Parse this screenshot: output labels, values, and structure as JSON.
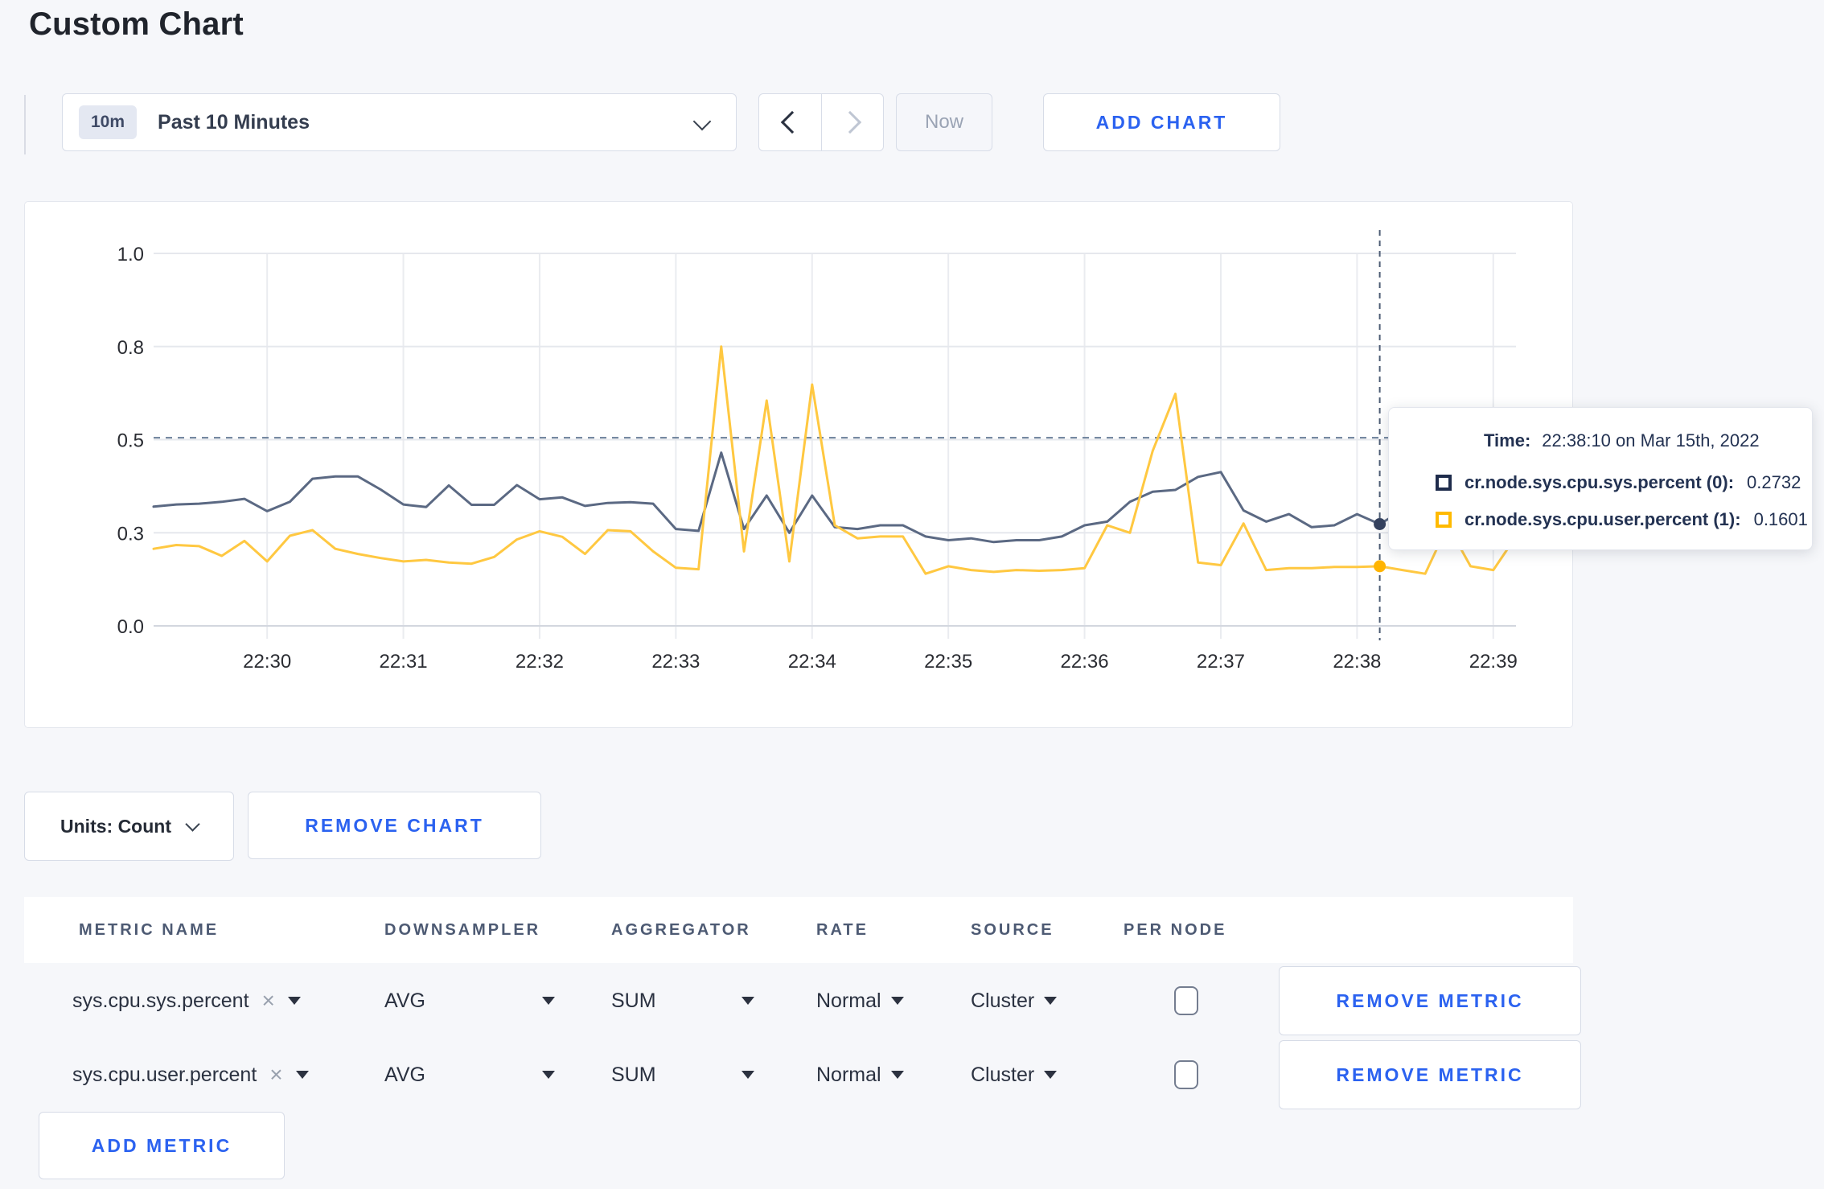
{
  "page": {
    "title": "Custom Chart"
  },
  "toolbar": {
    "time_badge": "10m",
    "time_label": "Past 10 Minutes",
    "now_label": "Now",
    "add_chart_label": "ADD CHART"
  },
  "chart_data": {
    "type": "line",
    "duration_seconds": 600,
    "sample_interval_seconds": 10,
    "start_time": "22:29:10",
    "grid": true,
    "ylim": [
      0,
      1
    ],
    "y_ticks": [
      {
        "label": "1.0",
        "value": 1.0
      },
      {
        "label": "0.8",
        "value": 0.75
      },
      {
        "label": "0.5",
        "value": 0.5
      },
      {
        "label": "0.3",
        "value": 0.25
      },
      {
        "label": "0.0",
        "value": 0.0
      }
    ],
    "x_ticks": [
      {
        "label": "22:30",
        "t": 50
      },
      {
        "label": "22:31",
        "t": 110
      },
      {
        "label": "22:32",
        "t": 170
      },
      {
        "label": "22:33",
        "t": 230
      },
      {
        "label": "22:34",
        "t": 290
      },
      {
        "label": "22:35",
        "t": 350
      },
      {
        "label": "22:36",
        "t": 410
      },
      {
        "label": "22:37",
        "t": 470
      },
      {
        "label": "22:38",
        "t": 530
      },
      {
        "label": "22:39",
        "t": 590
      }
    ],
    "hline_value": 0.505,
    "crosshair": {
      "t": 540,
      "points": [
        {
          "value": 0.2732,
          "color": "#35425f"
        },
        {
          "value": 0.1601,
          "color": "#ffb400"
        }
      ]
    },
    "series": [
      {
        "name": "cr.node.sys.cpu.sys.percent (0)",
        "color": "#5b6983",
        "values": [
          0.32,
          0.326,
          0.328,
          0.333,
          0.341,
          0.308,
          0.333,
          0.395,
          0.401,
          0.401,
          0.366,
          0.326,
          0.319,
          0.377,
          0.325,
          0.325,
          0.378,
          0.34,
          0.345,
          0.322,
          0.33,
          0.332,
          0.328,
          0.26,
          0.255,
          0.465,
          0.26,
          0.35,
          0.25,
          0.35,
          0.265,
          0.26,
          0.27,
          0.27,
          0.24,
          0.23,
          0.235,
          0.225,
          0.23,
          0.23,
          0.24,
          0.27,
          0.28,
          0.333,
          0.36,
          0.365,
          0.4,
          0.413,
          0.31,
          0.28,
          0.3,
          0.265,
          0.27,
          0.3,
          0.2732,
          0.31,
          0.285,
          0.3,
          0.295,
          0.3,
          0.305
        ]
      },
      {
        "name": "cr.node.sys.cpu.user.percent (1)",
        "color": "#ffc841",
        "values": [
          0.207,
          0.217,
          0.214,
          0.188,
          0.228,
          0.173,
          0.242,
          0.257,
          0.207,
          0.193,
          0.182,
          0.173,
          0.177,
          0.17,
          0.167,
          0.185,
          0.232,
          0.254,
          0.239,
          0.193,
          0.257,
          0.254,
          0.2,
          0.156,
          0.152,
          0.75,
          0.2,
          0.605,
          0.173,
          0.648,
          0.27,
          0.235,
          0.24,
          0.24,
          0.14,
          0.16,
          0.15,
          0.145,
          0.15,
          0.148,
          0.15,
          0.155,
          0.27,
          0.25,
          0.47,
          0.623,
          0.17,
          0.163,
          0.275,
          0.15,
          0.155,
          0.155,
          0.158,
          0.158,
          0.1601,
          0.15,
          0.14,
          0.27,
          0.16,
          0.15,
          0.24
        ]
      }
    ]
  },
  "tooltip": {
    "time_label": "Time:",
    "time_value": "22:38:10 on Mar 15th, 2022",
    "entries": [
      {
        "name": "cr.node.sys.cpu.sys.percent (0):",
        "value": "0.2732",
        "swatch": "#1f2c4c"
      },
      {
        "name": "cr.node.sys.cpu.user.percent (1):",
        "value": "0.1601",
        "swatch": "#ffba00"
      }
    ]
  },
  "chart_controls": {
    "units_label": "Units: Count",
    "remove_chart_label": "REMOVE CHART",
    "add_metric_label": "ADD METRIC"
  },
  "metrics_table": {
    "headers": [
      "METRIC NAME",
      "DOWNSAMPLER",
      "AGGREGATOR",
      "RATE",
      "SOURCE",
      "PER NODE"
    ],
    "remove_metric_label": "REMOVE METRIC",
    "close_glyph": "×",
    "rows": [
      {
        "metric": "sys.cpu.sys.percent",
        "downsampler": "AVG",
        "aggregator": "SUM",
        "rate": "Normal",
        "source": "Cluster",
        "per_node": false
      },
      {
        "metric": "sys.cpu.user.percent",
        "downsampler": "AVG",
        "aggregator": "SUM",
        "rate": "Normal",
        "source": "Cluster",
        "per_node": false
      }
    ]
  },
  "theme": {
    "accent_blue": "#2b62f0",
    "series_sys": "#5b6983",
    "series_user": "#ffc841",
    "page_bg": "#f6f7fa"
  }
}
